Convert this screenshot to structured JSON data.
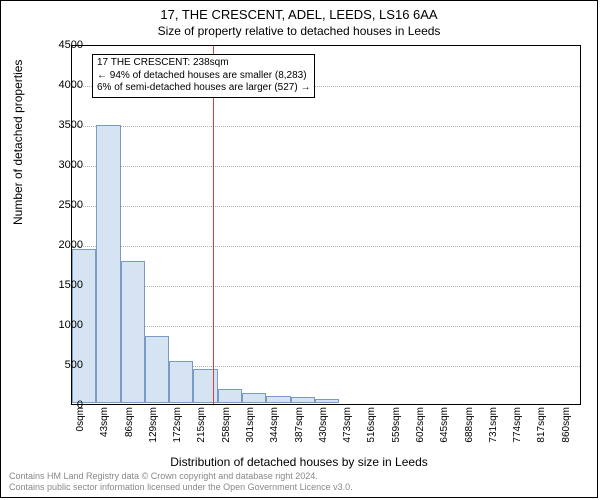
{
  "title_line1": "17, THE CRESCENT, ADEL, LEEDS, LS16 6AA",
  "title_line2": "Size of property relative to detached houses in Leeds",
  "ylabel": "Number of detached properties",
  "xlabel": "Distribution of detached houses by size in Leeds",
  "chart": {
    "type": "histogram",
    "ylim": [
      0,
      4500
    ],
    "ytick_step": 500,
    "xlim_count": 21,
    "x_tick_labels": [
      "0sqm",
      "43sqm",
      "86sqm",
      "129sqm",
      "172sqm",
      "215sqm",
      "258sqm",
      "301sqm",
      "344sqm",
      "387sqm",
      "430sqm",
      "473sqm",
      "516sqm",
      "559sqm",
      "602sqm",
      "645sqm",
      "688sqm",
      "731sqm",
      "774sqm",
      "817sqm",
      "860sqm"
    ],
    "bars": [
      1920,
      3480,
      1780,
      840,
      530,
      420,
      180,
      120,
      90,
      70,
      50,
      0,
      0,
      0,
      0,
      0,
      0,
      0,
      0,
      0
    ],
    "bar_fill": "#d6e3f3",
    "bar_stroke": "#7a9bc8",
    "background_color": "#ffffff",
    "grid_color": "#b0b0b0",
    "reference_value": 238,
    "reference_color": "#d04040"
  },
  "callout": {
    "line1": "17 THE CRESCENT: 238sqm",
    "line2": "← 94% of detached houses are smaller (8,283)",
    "line3": "6% of semi-detached houses are larger (527) →"
  },
  "credits": {
    "line1": "Contains HM Land Registry data © Crown copyright and database right 2024.",
    "line2": "Contains public sector information licensed under the Open Government Licence v3.0."
  }
}
